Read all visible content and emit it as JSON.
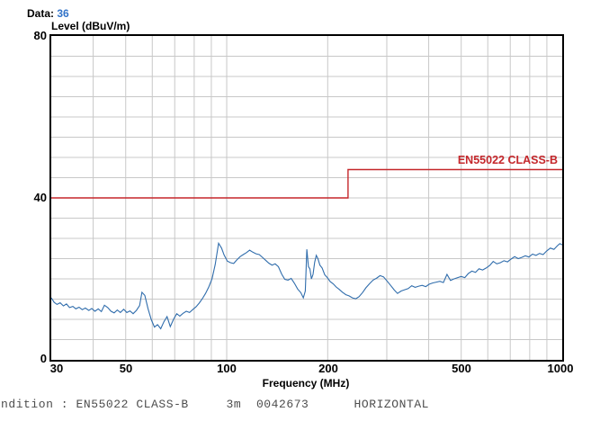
{
  "header": {
    "data_label": "Data:",
    "data_value": "36"
  },
  "chart_data": {
    "type": "line",
    "title": "Level (dBuV/m)",
    "xlabel": "Frequency (MHz)",
    "ylabel": "Level (dBuV/m)",
    "x_scale": "log",
    "xlim": [
      30,
      1000
    ],
    "ylim": [
      0,
      80
    ],
    "grid": true,
    "x_tick_labels": [
      "30",
      "50",
      "100",
      "200",
      "500",
      "1000"
    ],
    "y_tick_labels": [
      "80",
      "40",
      "0"
    ],
    "x_gridlines": [
      40,
      50,
      60,
      70,
      80,
      90,
      100,
      200,
      300,
      400,
      500,
      600,
      700,
      800,
      900
    ],
    "y_gridline_step": 5,
    "colors": {
      "trace": "#306dac",
      "limit": "#c5272b",
      "grid": "#c8c8c8",
      "axis": "#000000",
      "data_value": "#3273c8",
      "status_text": "#4d4d4d"
    },
    "series": [
      {
        "name": "measured-emission-trace",
        "type": "line",
        "color": "#306dac",
        "points": [
          [
            30.0,
            15.3
          ],
          [
            30.6,
            14.2
          ],
          [
            31.2,
            13.7
          ],
          [
            31.9,
            14.1
          ],
          [
            32.6,
            13.3
          ],
          [
            33.3,
            13.8
          ],
          [
            34.0,
            12.9
          ],
          [
            34.8,
            13.2
          ],
          [
            35.5,
            12.6
          ],
          [
            36.3,
            13.0
          ],
          [
            37.1,
            12.4
          ],
          [
            37.9,
            12.8
          ],
          [
            38.8,
            12.2
          ],
          [
            39.6,
            12.7
          ],
          [
            40.5,
            12.0
          ],
          [
            41.4,
            12.6
          ],
          [
            42.3,
            11.9
          ],
          [
            43.2,
            13.5
          ],
          [
            44.2,
            12.9
          ],
          [
            45.2,
            12.0
          ],
          [
            46.2,
            11.6
          ],
          [
            47.2,
            12.3
          ],
          [
            48.2,
            11.7
          ],
          [
            49.3,
            12.5
          ],
          [
            50.4,
            11.7
          ],
          [
            51.5,
            12.1
          ],
          [
            52.6,
            11.4
          ],
          [
            53.8,
            12.2
          ],
          [
            55.0,
            13.4
          ],
          [
            55.9,
            16.7
          ],
          [
            57.0,
            15.9
          ],
          [
            58.3,
            12.6
          ],
          [
            59.6,
            9.9
          ],
          [
            60.9,
            8.1
          ],
          [
            62.2,
            8.7
          ],
          [
            63.6,
            7.7
          ],
          [
            65.0,
            9.4
          ],
          [
            66.4,
            10.7
          ],
          [
            67.9,
            8.2
          ],
          [
            69.4,
            10.0
          ],
          [
            71.0,
            11.4
          ],
          [
            72.5,
            10.8
          ],
          [
            74.1,
            11.5
          ],
          [
            75.8,
            12.0
          ],
          [
            77.5,
            11.7
          ],
          [
            79.2,
            12.4
          ],
          [
            81.0,
            13.1
          ],
          [
            82.8,
            14.0
          ],
          [
            84.6,
            15.1
          ],
          [
            86.5,
            16.4
          ],
          [
            88.4,
            18.0
          ],
          [
            90.4,
            20.0
          ],
          [
            92.4,
            23.5
          ],
          [
            94.6,
            28.8
          ],
          [
            96.5,
            27.6
          ],
          [
            98.2,
            25.9
          ],
          [
            100.4,
            24.4
          ],
          [
            102.6,
            24.0
          ],
          [
            104.9,
            23.8
          ],
          [
            107.2,
            24.7
          ],
          [
            109.6,
            25.5
          ],
          [
            112.0,
            26.0
          ],
          [
            114.5,
            26.5
          ],
          [
            117.0,
            27.1
          ],
          [
            119.6,
            26.6
          ],
          [
            122.3,
            26.2
          ],
          [
            125.0,
            26.0
          ],
          [
            127.8,
            25.3
          ],
          [
            130.6,
            24.6
          ],
          [
            133.5,
            23.9
          ],
          [
            136.5,
            23.4
          ],
          [
            139.5,
            23.7
          ],
          [
            142.6,
            23.0
          ],
          [
            145.8,
            21.2
          ],
          [
            149.0,
            19.9
          ],
          [
            152.3,
            19.7
          ],
          [
            155.7,
            20.1
          ],
          [
            159.2,
            18.9
          ],
          [
            162.7,
            17.5
          ],
          [
            166.3,
            16.6
          ],
          [
            169.2,
            15.3
          ],
          [
            171.5,
            17.0
          ],
          [
            173.3,
            27.3
          ],
          [
            175.2,
            23.0
          ],
          [
            177.0,
            22.5
          ],
          [
            178.9,
            20.0
          ],
          [
            180.9,
            21.1
          ],
          [
            182.9,
            24.1
          ],
          [
            184.9,
            25.8
          ],
          [
            187.0,
            25.0
          ],
          [
            189.5,
            23.4
          ],
          [
            192.5,
            22.7
          ],
          [
            196.0,
            21.0
          ],
          [
            199.5,
            20.3
          ],
          [
            203.5,
            19.3
          ],
          [
            207.5,
            18.8
          ],
          [
            212.0,
            18.0
          ],
          [
            216.5,
            17.4
          ],
          [
            221.5,
            16.7
          ],
          [
            226.5,
            16.1
          ],
          [
            231.5,
            15.8
          ],
          [
            237.0,
            15.3
          ],
          [
            242.5,
            15.1
          ],
          [
            248.0,
            15.6
          ],
          [
            254.0,
            16.6
          ],
          [
            260.0,
            17.8
          ],
          [
            266.5,
            18.8
          ],
          [
            273.0,
            19.7
          ],
          [
            280.0,
            20.2
          ],
          [
            286.5,
            20.8
          ],
          [
            293.5,
            20.5
          ],
          [
            301.0,
            19.4
          ],
          [
            308.0,
            18.4
          ],
          [
            315.5,
            17.3
          ],
          [
            323.0,
            16.4
          ],
          [
            331.0,
            17.0
          ],
          [
            339.0,
            17.3
          ],
          [
            347.5,
            17.6
          ],
          [
            356.0,
            18.3
          ],
          [
            364.5,
            17.9
          ],
          [
            373.5,
            18.2
          ],
          [
            382.5,
            18.4
          ],
          [
            392.0,
            18.1
          ],
          [
            401.5,
            18.7
          ],
          [
            411.5,
            19.0
          ],
          [
            421.5,
            19.2
          ],
          [
            432.0,
            19.4
          ],
          [
            442.5,
            19.1
          ],
          [
            453.5,
            21.1
          ],
          [
            464.5,
            19.6
          ],
          [
            476.0,
            20.0
          ],
          [
            488.0,
            20.3
          ],
          [
            500.0,
            20.6
          ],
          [
            512.5,
            20.3
          ],
          [
            525.0,
            21.3
          ],
          [
            538.0,
            21.9
          ],
          [
            551.5,
            21.6
          ],
          [
            565.0,
            22.5
          ],
          [
            579.0,
            22.2
          ],
          [
            593.5,
            22.7
          ],
          [
            608.0,
            23.3
          ],
          [
            623.0,
            24.3
          ],
          [
            638.5,
            23.7
          ],
          [
            654.5,
            24.0
          ],
          [
            670.5,
            24.5
          ],
          [
            687.0,
            24.2
          ],
          [
            704.0,
            24.9
          ],
          [
            721.5,
            25.5
          ],
          [
            739.5,
            25.0
          ],
          [
            757.5,
            25.3
          ],
          [
            776.5,
            25.7
          ],
          [
            795.5,
            25.4
          ],
          [
            815.5,
            26.1
          ],
          [
            835.5,
            25.8
          ],
          [
            856.0,
            26.3
          ],
          [
            877.5,
            26.0
          ],
          [
            899.0,
            26.9
          ],
          [
            921.5,
            27.6
          ],
          [
            944.5,
            27.3
          ],
          [
            968.0,
            28.2
          ],
          [
            984.0,
            28.7
          ],
          [
            1000.0,
            28.4
          ]
        ]
      },
      {
        "name": "limit-line",
        "type": "line",
        "color": "#c5272b",
        "label": "EN55022 CLASS-B",
        "points": [
          [
            30,
            40
          ],
          [
            230,
            40
          ],
          [
            230,
            47
          ],
          [
            1000,
            47
          ]
        ]
      }
    ]
  },
  "footer": {
    "status_line": "ndition : EN55022 CLASS-B     3m  0042673      HORIZONTAL"
  }
}
